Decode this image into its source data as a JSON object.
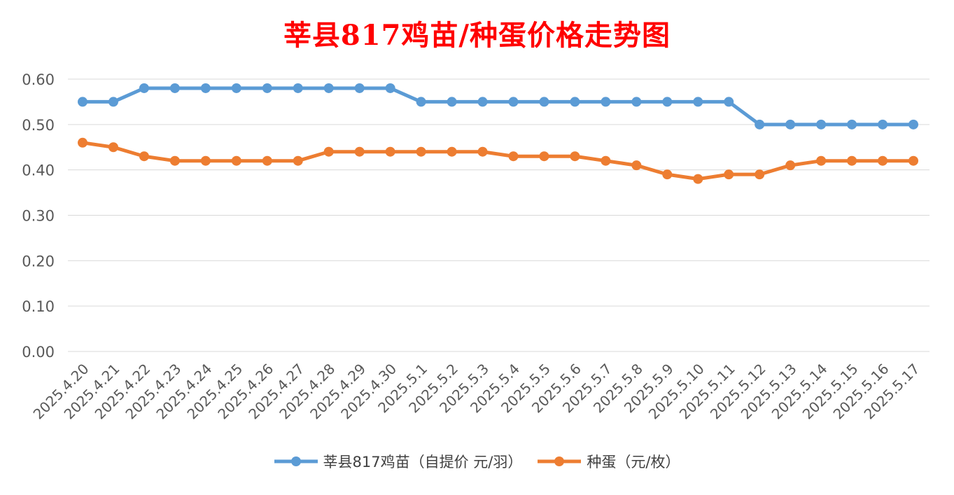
{
  "chart_data": {
    "type": "line",
    "title": "莘县817鸡苗/种蛋价格走势图",
    "categories": [
      "2025.4.20",
      "2025.4.21",
      "2025.4.22",
      "2025.4.23",
      "2025.4.24",
      "2025.4.25",
      "2025.4.26",
      "2025.4.27",
      "2025.4.28",
      "2025.4.29",
      "2025.4.30",
      "2025.5.1",
      "2025.5.2",
      "2025.5.3",
      "2025.5.4",
      "2025.5.5",
      "2025.5.6",
      "2025.5.7",
      "2025.5.8",
      "2025.5.9",
      "2025.5.10",
      "2025.5.11",
      "2025.5.12",
      "2025.5.13",
      "2025.5.14",
      "2025.5.15",
      "2025.5.16",
      "2025.5.17"
    ],
    "series": [
      {
        "name": "莘县817鸡苗（自提价 元/羽）",
        "color": "#5b9bd5",
        "values": [
          0.55,
          0.55,
          0.58,
          0.58,
          0.58,
          0.58,
          0.58,
          0.58,
          0.58,
          0.58,
          0.58,
          0.55,
          0.55,
          0.55,
          0.55,
          0.55,
          0.55,
          0.55,
          0.55,
          0.55,
          0.55,
          0.55,
          0.5,
          0.5,
          0.5,
          0.5,
          0.5,
          0.5
        ]
      },
      {
        "name": "种蛋（元/枚）",
        "color": "#ed7d31",
        "values": [
          0.46,
          0.45,
          0.43,
          0.42,
          0.42,
          0.42,
          0.42,
          0.42,
          0.44,
          0.44,
          0.44,
          0.44,
          0.44,
          0.44,
          0.43,
          0.43,
          0.43,
          0.42,
          0.41,
          0.39,
          0.38,
          0.39,
          0.39,
          0.41,
          0.42,
          0.42,
          0.42,
          0.42
        ]
      }
    ],
    "ylim": [
      0,
      0.6
    ],
    "yticks": [
      "0.00",
      "0.10",
      "0.20",
      "0.30",
      "0.40",
      "0.50",
      "0.60"
    ],
    "grid": true,
    "legend_position": "bottom"
  }
}
